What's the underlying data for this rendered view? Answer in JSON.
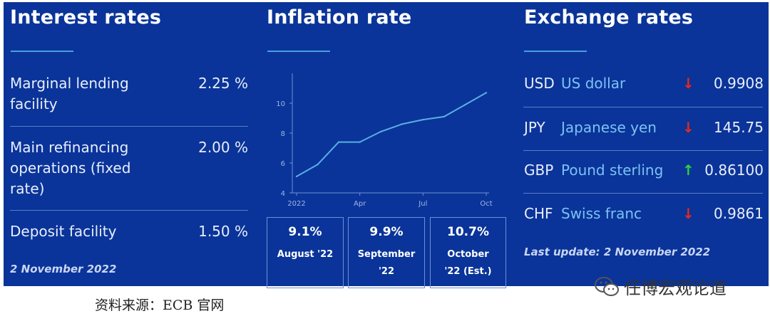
{
  "interest": {
    "title": "Interest rates",
    "rows": [
      {
        "label": "Marginal lending facility",
        "value": "2.25 %"
      },
      {
        "label": "Main refinancing operations (fixed rate)",
        "value": "2.00 %"
      },
      {
        "label": "Deposit facility",
        "value": "1.50 %"
      }
    ],
    "date": "2 November 2022"
  },
  "inflation": {
    "title": "Inflation rate",
    "boxes": [
      {
        "value": "9.1%",
        "label": "August '22"
      },
      {
        "value": "9.9%",
        "label": "September '22"
      },
      {
        "value": "10.7%",
        "label": "October '22 (Est.)"
      }
    ]
  },
  "chart_data": {
    "type": "line",
    "title": "",
    "xlabel": "",
    "ylabel": "",
    "x_ticks": [
      "2022",
      "Apr",
      "Jul",
      "Oct"
    ],
    "y_ticks": [
      4,
      6,
      8,
      10
    ],
    "ylim": [
      4,
      12
    ],
    "x": [
      "Jan 2022",
      "Feb",
      "Mar",
      "Apr",
      "May",
      "Jun",
      "Jul",
      "Aug",
      "Sep",
      "Oct"
    ],
    "values": [
      5.1,
      5.9,
      7.4,
      7.4,
      8.1,
      8.6,
      8.9,
      9.1,
      9.9,
      10.7
    ],
    "color": "#5aaee6"
  },
  "exchange": {
    "title": "Exchange rates",
    "rows": [
      {
        "code": "USD",
        "name": "US dollar",
        "direction": "down",
        "arrow": "↓",
        "value": "0.9908"
      },
      {
        "code": "JPY",
        "name": "Japanese yen",
        "direction": "down",
        "arrow": "↓",
        "value": "145.75"
      },
      {
        "code": "GBP",
        "name": "Pound sterling",
        "direction": "up",
        "arrow": "↑",
        "value": "0.86100"
      },
      {
        "code": "CHF",
        "name": "Swiss franc",
        "direction": "down",
        "arrow": "↓",
        "value": "0.9861"
      }
    ],
    "last_update": "Last update: 2 November 2022",
    "colors": {
      "down": "#e8281e",
      "up": "#2fd63a"
    }
  },
  "footer": {
    "source": "资料来源：ECB 官网",
    "watermark": "任博宏观论道"
  }
}
